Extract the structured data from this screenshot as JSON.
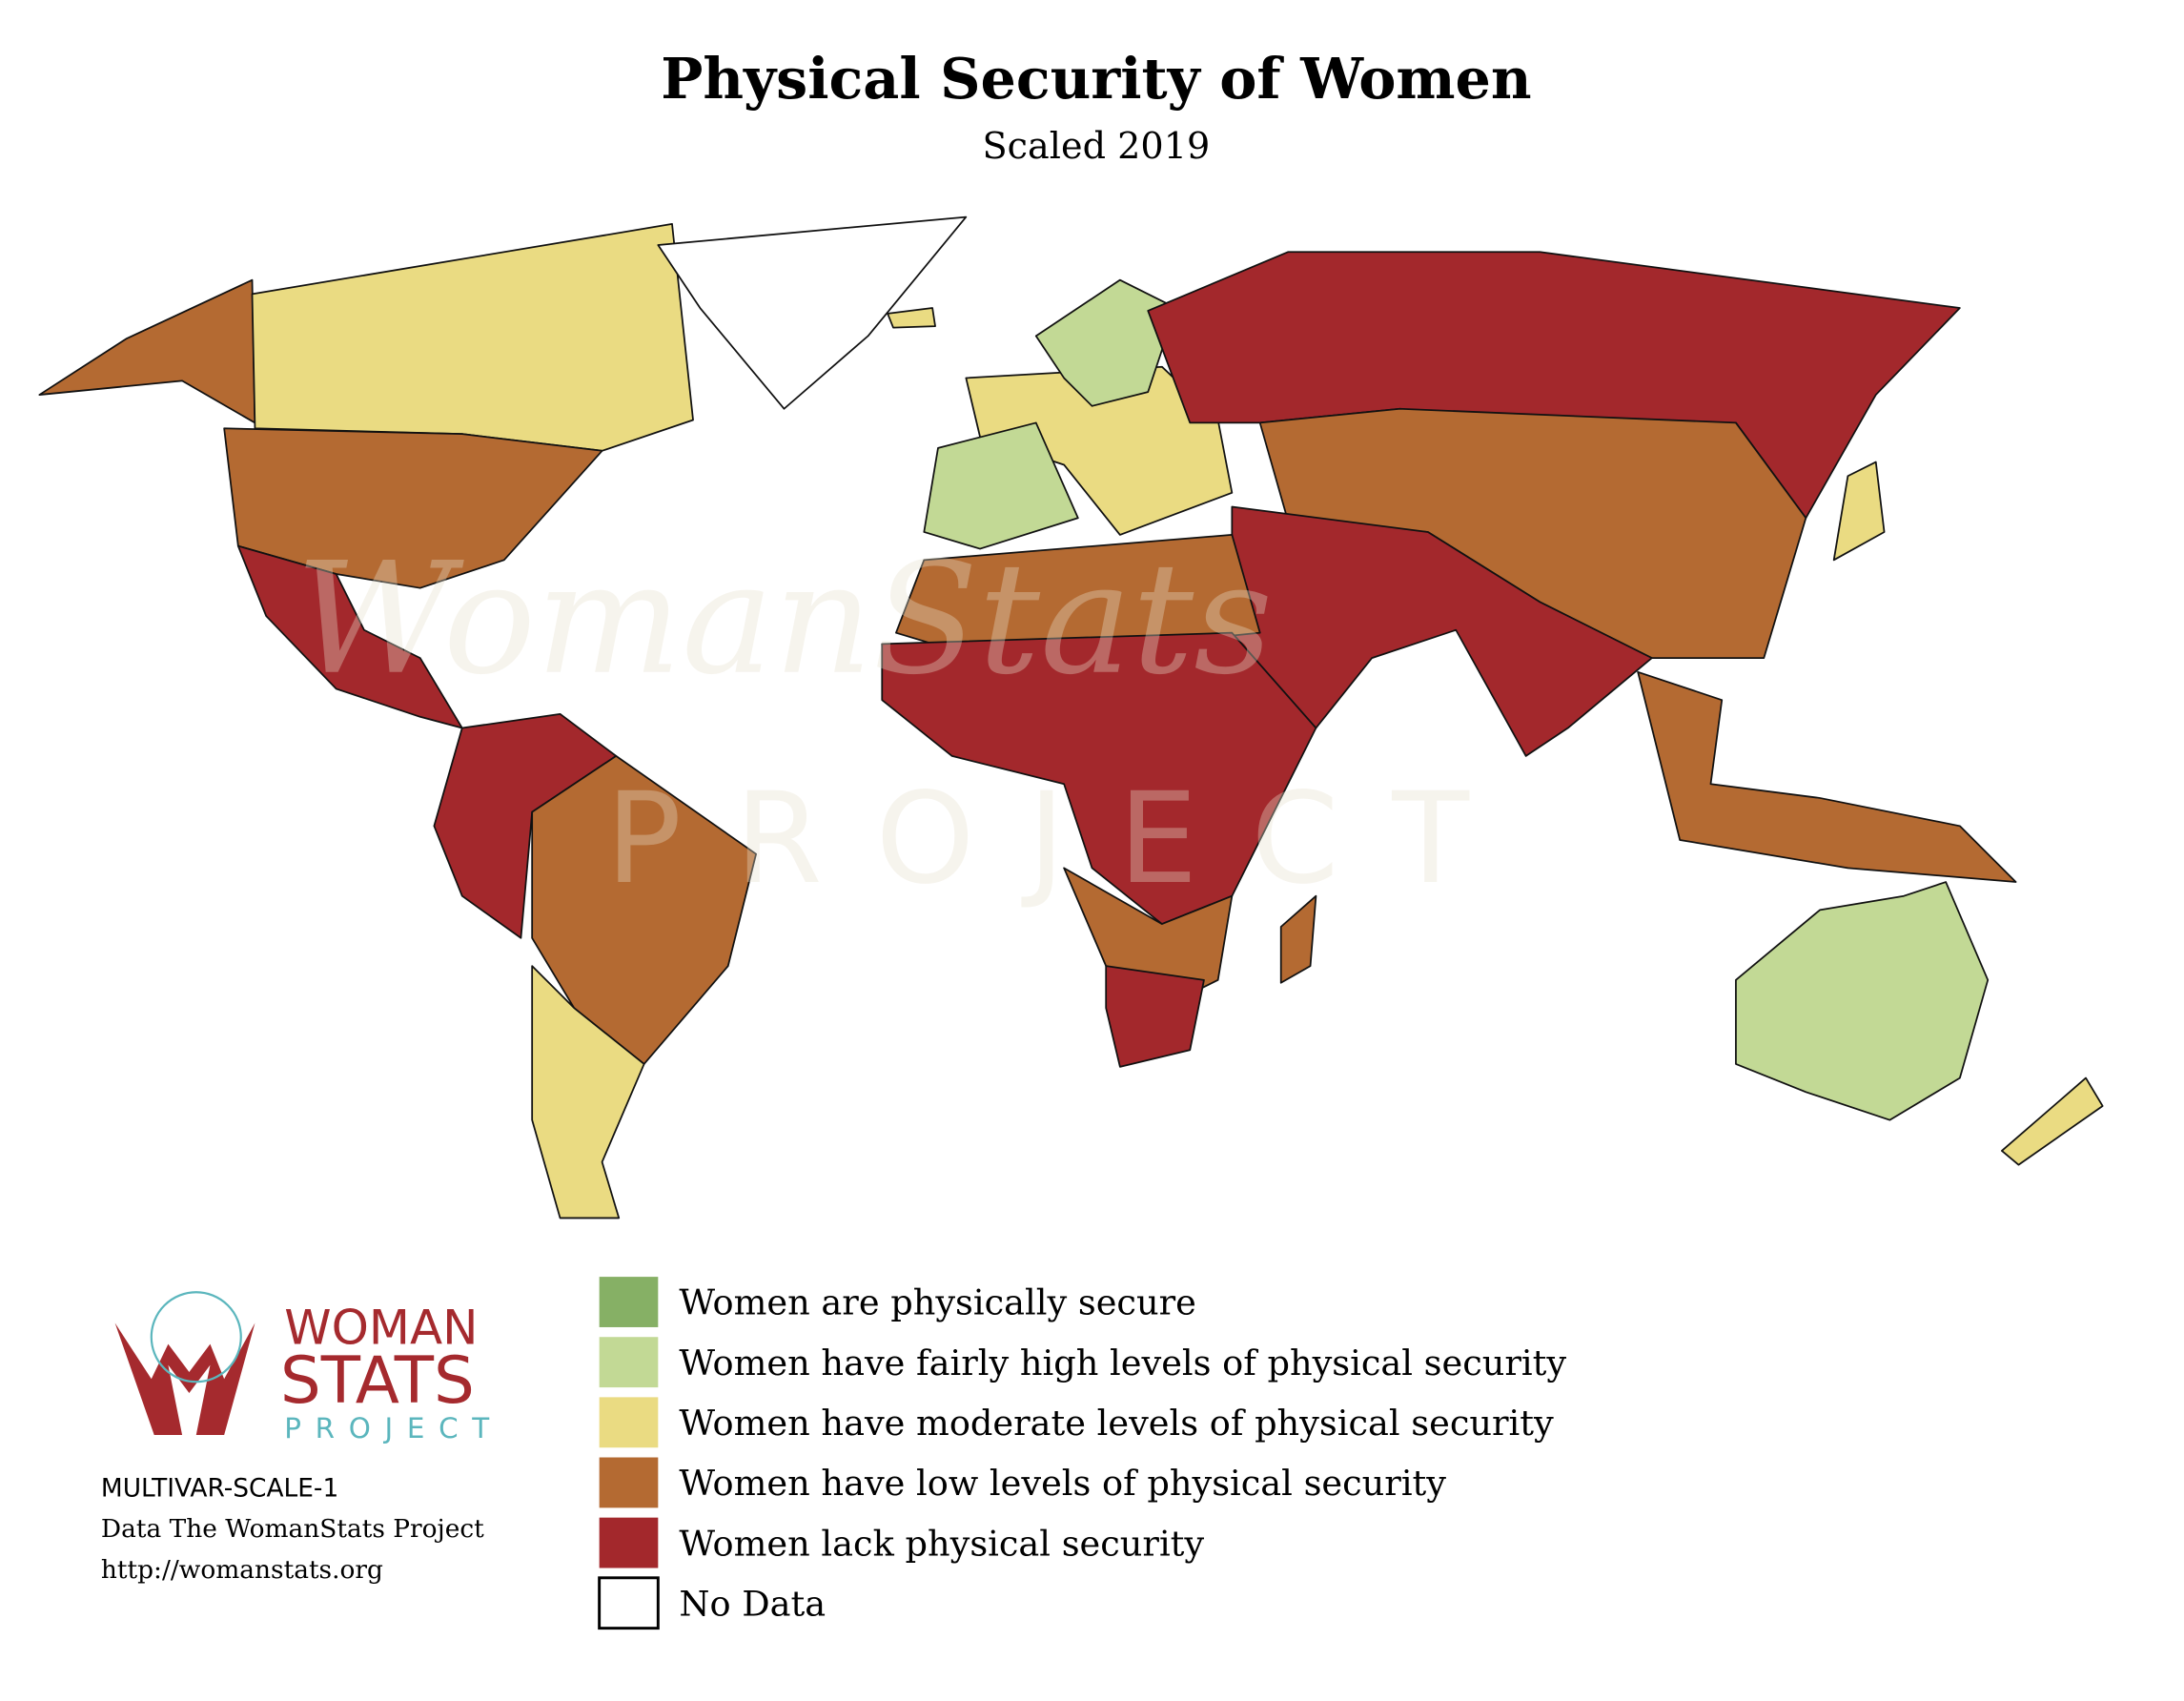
{
  "title": "Physical Security of Women",
  "subtitle": "Scaled 2019",
  "watermark": {
    "line1": "WomanStats",
    "line2": "PROJECT"
  },
  "legend": [
    {
      "label": "Women are physically secure",
      "color": "#86b065"
    },
    {
      "label": "Women have fairly high levels of physical security",
      "color": "#c2d995"
    },
    {
      "label": "Women have moderate levels of physical security",
      "color": "#eadb82"
    },
    {
      "label": "Women have low levels of physical security",
      "color": "#b46a32"
    },
    {
      "label": "Women lack physical security",
      "color": "#a3282c"
    },
    {
      "label": "No Data",
      "color": "#ffffff"
    }
  ],
  "logo": {
    "line1": "WOMAN",
    "line2": "STATS",
    "line3": "PROJECT"
  },
  "footer": [
    "MULTIVAR-SCALE-1",
    "Data The WomanStats Project",
    "http://womanstats.org"
  ]
}
